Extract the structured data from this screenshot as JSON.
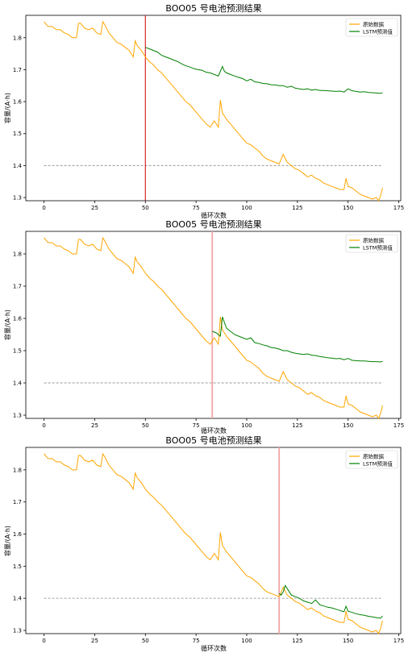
{
  "chart_data": [
    {
      "type": "line",
      "title": "BOO05 号电池预测结果",
      "xlabel": "循环次数",
      "ylabel": "容量/(A·h)",
      "xlim": [
        -9,
        176
      ],
      "ylim": [
        1.29,
        1.87
      ],
      "xticks": [
        0,
        25,
        50,
        75,
        100,
        125,
        150,
        175
      ],
      "yticks": [
        1.3,
        1.4,
        1.5,
        1.6,
        1.7,
        1.8
      ],
      "ytick_labels": [
        "1.3",
        "1.4",
        "1.5",
        "1.6",
        "1.7",
        "1.8"
      ],
      "legend_position": "top-right",
      "threshold": 1.4,
      "split_x": 50,
      "split_color": "#d62728",
      "series": [
        {
          "name": "原始数据",
          "color": "#ffa500",
          "x": [
            0,
            2,
            4,
            6,
            8,
            10,
            12,
            14,
            16,
            17,
            18,
            20,
            22,
            24,
            26,
            28,
            29,
            30,
            32,
            34,
            36,
            38,
            40,
            42,
            44,
            45,
            46,
            48,
            50,
            52,
            54,
            56,
            58,
            60,
            62,
            64,
            66,
            68,
            70,
            72,
            74,
            76,
            78,
            80,
            82,
            84,
            86,
            87,
            88,
            90,
            92,
            94,
            96,
            98,
            100,
            102,
            104,
            106,
            108,
            110,
            112,
            114,
            116,
            118,
            120,
            122,
            124,
            126,
            128,
            130,
            132,
            134,
            136,
            138,
            140,
            142,
            144,
            146,
            148,
            149,
            150,
            152,
            154,
            156,
            158,
            160,
            162,
            164,
            165,
            166,
            167
          ],
          "y": [
            1.85,
            1.835,
            1.835,
            1.825,
            1.825,
            1.815,
            1.81,
            1.8,
            1.8,
            1.845,
            1.845,
            1.83,
            1.825,
            1.83,
            1.815,
            1.81,
            1.85,
            1.84,
            1.815,
            1.8,
            1.785,
            1.78,
            1.77,
            1.76,
            1.74,
            1.79,
            1.775,
            1.76,
            1.74,
            1.725,
            1.715,
            1.7,
            1.69,
            1.675,
            1.66,
            1.645,
            1.63,
            1.615,
            1.6,
            1.59,
            1.575,
            1.56,
            1.545,
            1.53,
            1.52,
            1.54,
            1.52,
            1.605,
            1.565,
            1.545,
            1.53,
            1.515,
            1.5,
            1.485,
            1.47,
            1.465,
            1.455,
            1.445,
            1.43,
            1.42,
            1.415,
            1.41,
            1.405,
            1.435,
            1.41,
            1.4,
            1.39,
            1.385,
            1.375,
            1.365,
            1.37,
            1.36,
            1.355,
            1.345,
            1.34,
            1.335,
            1.33,
            1.325,
            1.325,
            1.36,
            1.335,
            1.33,
            1.32,
            1.31,
            1.305,
            1.3,
            1.295,
            1.3,
            1.29,
            1.305,
            1.33
          ]
        },
        {
          "name": "LSTM预测值",
          "color": "#008000",
          "x": [
            50,
            52,
            54,
            56,
            58,
            60,
            62,
            64,
            66,
            68,
            70,
            72,
            74,
            76,
            78,
            80,
            82,
            84,
            86,
            88,
            89,
            90,
            92,
            94,
            96,
            98,
            100,
            102,
            104,
            106,
            108,
            110,
            112,
            114,
            116,
            118,
            120,
            122,
            124,
            126,
            128,
            130,
            132,
            134,
            136,
            138,
            140,
            142,
            144,
            146,
            148,
            150,
            152,
            154,
            156,
            158,
            160,
            162,
            164,
            166,
            167
          ],
          "y": [
            1.77,
            1.765,
            1.76,
            1.755,
            1.745,
            1.74,
            1.735,
            1.73,
            1.725,
            1.718,
            1.712,
            1.708,
            1.703,
            1.7,
            1.698,
            1.692,
            1.69,
            1.685,
            1.68,
            1.71,
            1.695,
            1.69,
            1.685,
            1.68,
            1.676,
            1.672,
            1.665,
            1.67,
            1.662,
            1.66,
            1.657,
            1.656,
            1.653,
            1.652,
            1.65,
            1.65,
            1.645,
            1.648,
            1.642,
            1.64,
            1.638,
            1.64,
            1.636,
            1.638,
            1.635,
            1.635,
            1.634,
            1.633,
            1.632,
            1.633,
            1.63,
            1.64,
            1.634,
            1.632,
            1.63,
            1.631,
            1.629,
            1.628,
            1.627,
            1.626,
            1.628
          ]
        }
      ]
    },
    {
      "type": "line",
      "title": "BOO05 号电池预测结果",
      "xlabel": "循环次数",
      "ylabel": "容量/(A·h)",
      "xlim": [
        -9,
        176
      ],
      "ylim": [
        1.29,
        1.87
      ],
      "xticks": [
        0,
        25,
        50,
        75,
        100,
        125,
        150,
        175
      ],
      "yticks": [
        1.3,
        1.4,
        1.5,
        1.6,
        1.7,
        1.8
      ],
      "ytick_labels": [
        "1.3",
        "1.4",
        "1.5",
        "1.6",
        "1.7",
        "1.8"
      ],
      "legend_position": "top-right",
      "threshold": 1.4,
      "split_x": 83,
      "split_color": "#f4a6a6",
      "series": [
        {
          "name": "原始数据",
          "color": "#ffa500",
          "x": [
            0,
            2,
            4,
            6,
            8,
            10,
            12,
            14,
            16,
            17,
            18,
            20,
            22,
            24,
            26,
            28,
            29,
            30,
            32,
            34,
            36,
            38,
            40,
            42,
            44,
            45,
            46,
            48,
            50,
            52,
            54,
            56,
            58,
            60,
            62,
            64,
            66,
            68,
            70,
            72,
            74,
            76,
            78,
            80,
            82,
            84,
            86,
            87,
            88,
            90,
            92,
            94,
            96,
            98,
            100,
            102,
            104,
            106,
            108,
            110,
            112,
            114,
            116,
            118,
            120,
            122,
            124,
            126,
            128,
            130,
            132,
            134,
            136,
            138,
            140,
            142,
            144,
            146,
            148,
            149,
            150,
            152,
            154,
            156,
            158,
            160,
            162,
            164,
            165,
            166,
            167
          ],
          "y": [
            1.85,
            1.835,
            1.835,
            1.825,
            1.825,
            1.815,
            1.81,
            1.8,
            1.8,
            1.845,
            1.845,
            1.83,
            1.825,
            1.83,
            1.815,
            1.81,
            1.85,
            1.84,
            1.815,
            1.8,
            1.785,
            1.78,
            1.77,
            1.76,
            1.74,
            1.79,
            1.775,
            1.76,
            1.74,
            1.725,
            1.715,
            1.7,
            1.69,
            1.675,
            1.66,
            1.645,
            1.63,
            1.615,
            1.6,
            1.59,
            1.575,
            1.56,
            1.545,
            1.53,
            1.52,
            1.54,
            1.52,
            1.605,
            1.565,
            1.545,
            1.53,
            1.515,
            1.5,
            1.485,
            1.47,
            1.465,
            1.455,
            1.445,
            1.43,
            1.42,
            1.415,
            1.41,
            1.405,
            1.435,
            1.41,
            1.4,
            1.39,
            1.385,
            1.375,
            1.365,
            1.37,
            1.36,
            1.355,
            1.345,
            1.34,
            1.335,
            1.33,
            1.325,
            1.325,
            1.36,
            1.335,
            1.33,
            1.32,
            1.31,
            1.305,
            1.3,
            1.295,
            1.3,
            1.29,
            1.305,
            1.33
          ]
        },
        {
          "name": "LSTM预测值",
          "color": "#008000",
          "x": [
            83,
            85,
            86,
            87,
            88,
            90,
            92,
            94,
            96,
            98,
            100,
            102,
            104,
            106,
            108,
            110,
            112,
            114,
            116,
            118,
            120,
            122,
            124,
            126,
            128,
            130,
            132,
            134,
            136,
            138,
            140,
            142,
            144,
            146,
            148,
            150,
            152,
            154,
            156,
            158,
            160,
            162,
            164,
            166,
            167
          ],
          "y": [
            1.56,
            1.555,
            1.55,
            1.545,
            1.605,
            1.57,
            1.56,
            1.55,
            1.545,
            1.54,
            1.535,
            1.54,
            1.525,
            1.522,
            1.518,
            1.515,
            1.51,
            1.508,
            1.505,
            1.5,
            1.5,
            1.495,
            1.492,
            1.49,
            1.488,
            1.49,
            1.486,
            1.485,
            1.482,
            1.48,
            1.478,
            1.477,
            1.475,
            1.476,
            1.472,
            1.476,
            1.47,
            1.469,
            1.468,
            1.468,
            1.467,
            1.466,
            1.466,
            1.465,
            1.467
          ]
        }
      ]
    },
    {
      "type": "line",
      "title": "BOO05 号电池预测结果",
      "xlabel": "循环次数",
      "ylabel": "容量/(A·h)",
      "xlim": [
        -9,
        176
      ],
      "ylim": [
        1.29,
        1.87
      ],
      "xticks": [
        0,
        25,
        50,
        75,
        100,
        125,
        150,
        175
      ],
      "yticks": [
        1.3,
        1.4,
        1.5,
        1.6,
        1.7,
        1.8
      ],
      "ytick_labels": [
        "1.3",
        "1.4",
        "1.5",
        "1.6",
        "1.7",
        "1.8"
      ],
      "legend_position": "top-right",
      "threshold": 1.4,
      "split_x": 116,
      "split_color": "#f4a6a6",
      "series": [
        {
          "name": "原始数据",
          "color": "#ffa500",
          "x": [
            0,
            2,
            4,
            6,
            8,
            10,
            12,
            14,
            16,
            17,
            18,
            20,
            22,
            24,
            26,
            28,
            29,
            30,
            32,
            34,
            36,
            38,
            40,
            42,
            44,
            45,
            46,
            48,
            50,
            52,
            54,
            56,
            58,
            60,
            62,
            64,
            66,
            68,
            70,
            72,
            74,
            76,
            78,
            80,
            82,
            84,
            86,
            87,
            88,
            90,
            92,
            94,
            96,
            98,
            100,
            102,
            104,
            106,
            108,
            110,
            112,
            114,
            116,
            118,
            120,
            122,
            124,
            126,
            128,
            130,
            132,
            134,
            136,
            138,
            140,
            142,
            144,
            146,
            148,
            149,
            150,
            152,
            154,
            156,
            158,
            160,
            162,
            164,
            165,
            166,
            167
          ],
          "y": [
            1.85,
            1.835,
            1.835,
            1.825,
            1.825,
            1.815,
            1.81,
            1.8,
            1.8,
            1.845,
            1.845,
            1.83,
            1.825,
            1.83,
            1.815,
            1.81,
            1.85,
            1.84,
            1.815,
            1.8,
            1.785,
            1.78,
            1.77,
            1.76,
            1.74,
            1.79,
            1.775,
            1.76,
            1.74,
            1.725,
            1.715,
            1.7,
            1.69,
            1.675,
            1.66,
            1.645,
            1.63,
            1.615,
            1.6,
            1.59,
            1.575,
            1.56,
            1.545,
            1.53,
            1.52,
            1.54,
            1.52,
            1.605,
            1.565,
            1.545,
            1.53,
            1.515,
            1.5,
            1.485,
            1.47,
            1.465,
            1.455,
            1.445,
            1.43,
            1.42,
            1.415,
            1.41,
            1.405,
            1.435,
            1.41,
            1.4,
            1.39,
            1.385,
            1.375,
            1.365,
            1.37,
            1.36,
            1.355,
            1.345,
            1.34,
            1.335,
            1.33,
            1.325,
            1.325,
            1.36,
            1.335,
            1.33,
            1.32,
            1.31,
            1.305,
            1.3,
            1.295,
            1.3,
            1.29,
            1.305,
            1.33
          ]
        },
        {
          "name": "LSTM预测值",
          "color": "#008000",
          "x": [
            116,
            117,
            118,
            119,
            120,
            122,
            124,
            126,
            128,
            130,
            132,
            134,
            136,
            138,
            140,
            142,
            144,
            146,
            148,
            149,
            150,
            152,
            154,
            156,
            158,
            160,
            162,
            164,
            166,
            167
          ],
          "y": [
            1.415,
            1.41,
            1.42,
            1.44,
            1.43,
            1.41,
            1.405,
            1.4,
            1.392,
            1.388,
            1.384,
            1.395,
            1.38,
            1.376,
            1.372,
            1.37,
            1.366,
            1.362,
            1.358,
            1.375,
            1.36,
            1.356,
            1.352,
            1.349,
            1.347,
            1.344,
            1.342,
            1.34,
            1.338,
            1.345
          ]
        }
      ]
    }
  ]
}
